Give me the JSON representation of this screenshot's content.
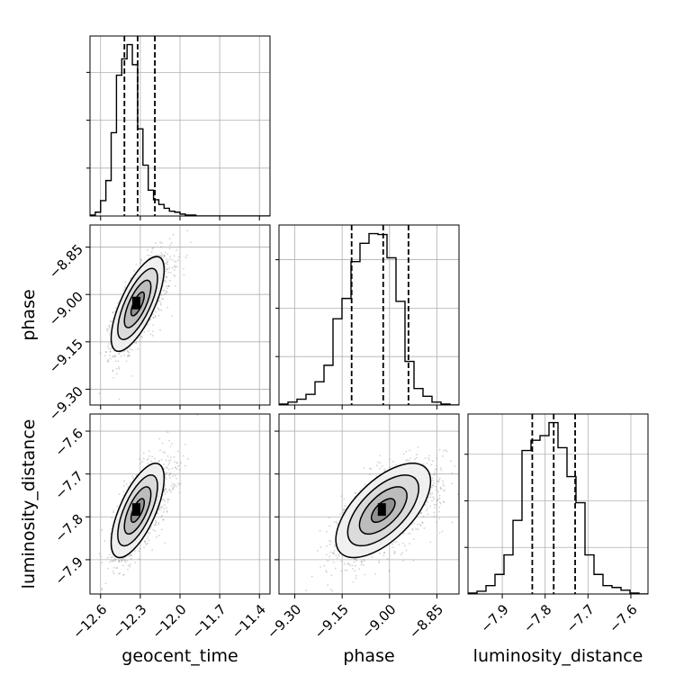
{
  "chart_data": {
    "type": "corner",
    "parameters": [
      "geocent_time",
      "phase",
      "luminosity_distance"
    ],
    "axes": {
      "geocent_time": {
        "label": "geocent_time",
        "range": [
          -12.68,
          -11.32
        ],
        "ticks": [
          -12.6,
          -12.3,
          -12.0,
          -11.7,
          -11.4
        ],
        "tick_labels": [
          "−12.6",
          "−12.3",
          "−12.0",
          "−11.7",
          "−11.4"
        ]
      },
      "phase": {
        "label": "phase",
        "range": [
          -9.35,
          -8.78
        ],
        "ticks": [
          -9.3,
          -9.15,
          -9.0,
          -8.85
        ],
        "tick_labels": [
          "−9.30",
          "−9.15",
          "−9.00",
          "−8.85"
        ]
      },
      "luminosity_distance": {
        "label": "luminosity_distance",
        "range": [
          -7.98,
          -7.56
        ],
        "ticks": [
          -7.9,
          -7.8,
          -7.7,
          -7.6
        ],
        "tick_labels": [
          "−7.9",
          "−7.8",
          "−7.7",
          "−7.6"
        ]
      }
    },
    "histograms": {
      "geocent_time": {
        "bin_edges": [
          -12.68,
          -12.64,
          -12.6,
          -12.56,
          -12.52,
          -12.48,
          -12.44,
          -12.4,
          -12.36,
          -12.32,
          -12.28,
          -12.24,
          -12.2,
          -12.16,
          -12.12,
          -12.08,
          -12.04,
          -12.0,
          -11.96,
          -11.92,
          -11.88,
          -11.84,
          -11.8,
          -11.76,
          -11.72,
          -11.68,
          -11.64,
          -11.6,
          -11.56,
          -11.52,
          -11.48,
          -11.44,
          -11.4,
          -11.36,
          -11.32
        ],
        "counts": [
          1,
          4,
          16,
          37,
          87,
          147,
          164,
          179,
          158,
          91,
          53,
          27,
          17,
          12,
          8,
          5,
          4,
          2,
          1,
          1,
          0,
          0,
          0,
          0,
          0,
          0,
          0,
          0,
          0,
          0,
          0,
          0,
          0,
          0
        ],
        "quantiles": [
          -12.42,
          -12.32,
          -12.19
        ]
      },
      "phase": {
        "bin_edges": [
          -9.35,
          -9.3215,
          -9.293,
          -9.2645,
          -9.236,
          -9.2075,
          -9.179,
          -9.1505,
          -9.122,
          -9.0935,
          -9.065,
          -9.0365,
          -9.008,
          -8.9795,
          -8.951,
          -8.9225,
          -8.894,
          -8.8655,
          -8.837,
          -8.8085,
          -8.78
        ],
        "counts": [
          1,
          3,
          6,
          11,
          24,
          41,
          89,
          110,
          148,
          167,
          177,
          176,
          152,
          107,
          45,
          17,
          9,
          3,
          1,
          0
        ],
        "quantiles": [
          -9.12,
          -9.02,
          -8.94
        ]
      },
      "luminosity_distance": {
        "bin_edges": [
          -7.98,
          -7.959,
          -7.938,
          -7.917,
          -7.896,
          -7.875,
          -7.854,
          -7.833,
          -7.812,
          -7.791,
          -7.77,
          -7.749,
          -7.728,
          -7.707,
          -7.686,
          -7.665,
          -7.644,
          -7.623,
          -7.602,
          -7.581,
          -7.56
        ],
        "counts": [
          1,
          3,
          9,
          21,
          42,
          79,
          154,
          165,
          170,
          184,
          157,
          126,
          98,
          42,
          21,
          9,
          7,
          4,
          1,
          0
        ],
        "quantiles": [
          -7.83,
          -7.78,
          -7.73
        ]
      }
    },
    "pairs": [
      {
        "x": "geocent_time",
        "y": "phase",
        "mean": [
          -12.32,
          -9.03
        ],
        "sd": [
          0.1,
          0.075
        ],
        "corr": 0.72,
        "contour_levels_sigma": [
          0.5,
          1.0,
          1.5,
          2.0
        ]
      },
      {
        "x": "geocent_time",
        "y": "luminosity_distance",
        "mean": [
          -12.32,
          -7.785
        ],
        "sd": [
          0.1,
          0.055
        ],
        "corr": 0.68,
        "contour_levels_sigma": [
          0.5,
          1.0,
          1.5,
          2.0
        ]
      },
      {
        "x": "phase",
        "y": "luminosity_distance",
        "mean": [
          -9.02,
          -7.785
        ],
        "sd": [
          0.075,
          0.055
        ],
        "corr": 0.62,
        "contour_levels_sigma": [
          0.5,
          1.0,
          1.5,
          2.0
        ]
      }
    ],
    "grid": true,
    "quantile_line_style": "dashed",
    "scatter_color": "#7f7f7f",
    "line_color": "#000000",
    "grid_color": "#b0b0b0"
  }
}
